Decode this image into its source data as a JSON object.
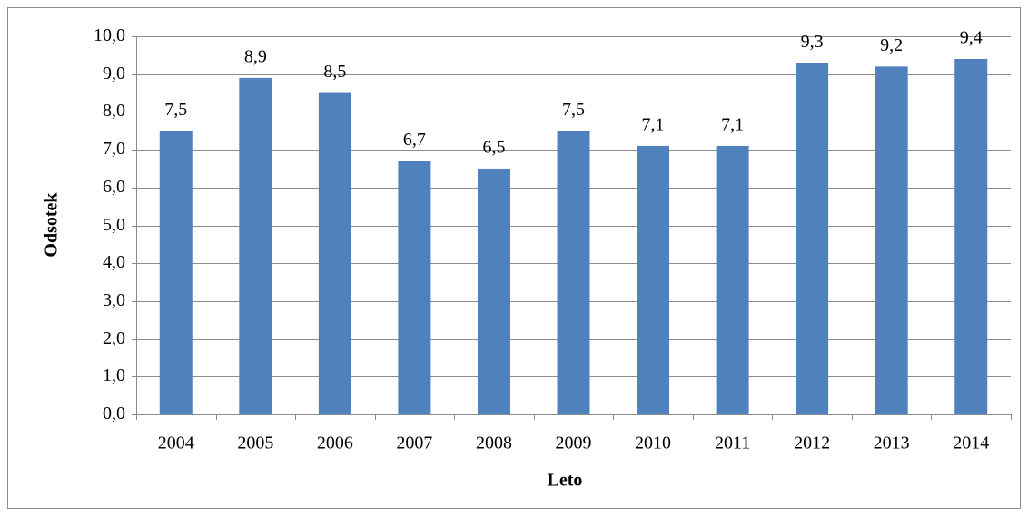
{
  "chart_data": {
    "type": "bar",
    "x_label": "Leto",
    "y_label": "Odsotek",
    "categories": [
      "2004",
      "2005",
      "2006",
      "2007",
      "2008",
      "2009",
      "2010",
      "2011",
      "2012",
      "2013",
      "2014"
    ],
    "values": [
      7.5,
      8.9,
      8.5,
      6.7,
      6.5,
      7.5,
      7.1,
      7.1,
      9.3,
      9.2,
      9.4
    ],
    "value_labels": [
      "7,5",
      "8,9",
      "8,5",
      "6,7",
      "6,5",
      "7,5",
      "7,1",
      "7,1",
      "9,3",
      "9,2",
      "9,4"
    ],
    "color": "#4f81bd",
    "ylim": [
      0,
      10
    ],
    "yticks": [
      {
        "value": 0,
        "label": "0,0"
      },
      {
        "value": 1,
        "label": "1,0"
      },
      {
        "value": 2,
        "label": "2,0"
      },
      {
        "value": 3,
        "label": "3,0"
      },
      {
        "value": 4,
        "label": "4,0"
      },
      {
        "value": 5,
        "label": "5,0"
      },
      {
        "value": 6,
        "label": "6,0"
      },
      {
        "value": 7,
        "label": "7,0"
      },
      {
        "value": 8,
        "label": "8,0"
      },
      {
        "value": 9,
        "label": "9,0"
      },
      {
        "value": 10,
        "label": "10,0"
      }
    ],
    "grid": true
  }
}
